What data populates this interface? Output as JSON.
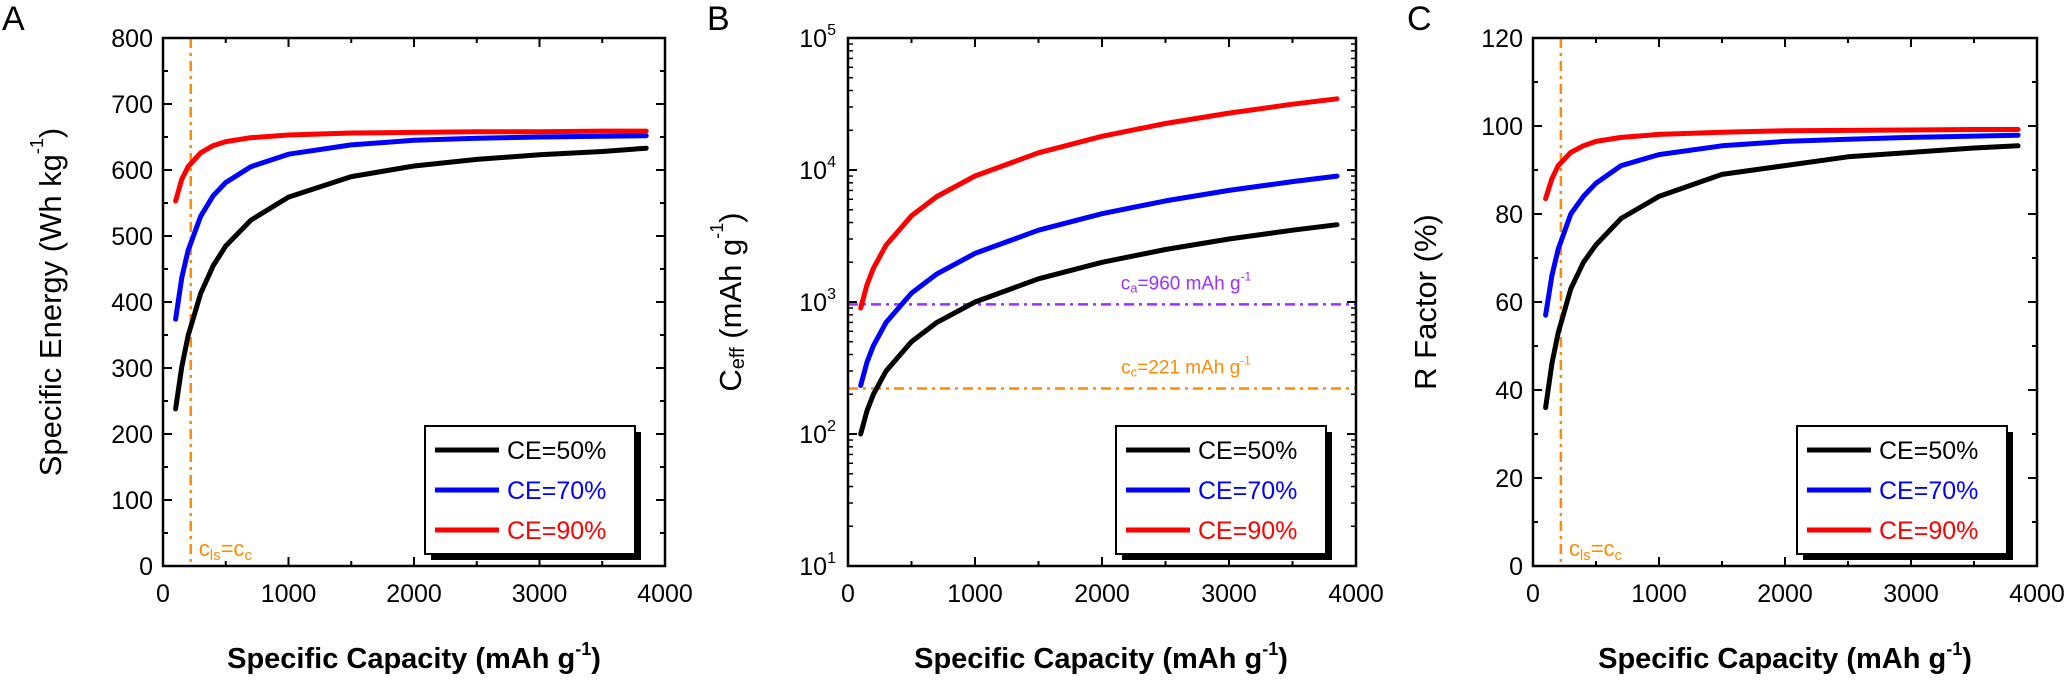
{
  "chart_data": [
    {
      "panel": "A",
      "type": "line",
      "xlabel": "Specific Capacity (mAh g",
      "xlabel_sup": "-1",
      "xlabel_end": ")",
      "ylabel": "Specific Energy (Wh kg",
      "ylabel_sup": "-1",
      "ylabel_end": ")",
      "xlim": [
        0,
        4000
      ],
      "ylim": [
        0,
        800
      ],
      "yscale": "linear",
      "xticks": [
        0,
        1000,
        2000,
        3000,
        4000
      ],
      "xtick_labels": [
        "0",
        "1000",
        "2000",
        "3000",
        "4000"
      ],
      "yticks": [
        0,
        100,
        200,
        300,
        400,
        500,
        600,
        700,
        800
      ],
      "ytick_labels": [
        "0",
        "100",
        "200",
        "300",
        "400",
        "500",
        "600",
        "700",
        "800"
      ],
      "grid": false,
      "legend_position": "bottom-right",
      "series": [
        {
          "name": "CE=50%",
          "color": "#000000",
          "x": [
            100,
            150,
            200,
            300,
            400,
            500,
            700,
            1000,
            1500,
            2000,
            2500,
            3000,
            3500,
            3850
          ],
          "y": [
            238,
            302,
            349,
            413,
            455,
            485,
            524,
            559,
            590,
            606,
            616,
            623,
            628,
            633
          ]
        },
        {
          "name": "CE=70%",
          "color": "#0000ff",
          "x": [
            100,
            150,
            200,
            300,
            400,
            500,
            700,
            1000,
            1500,
            2000,
            2500,
            3000,
            3500,
            3850
          ],
          "y": [
            374,
            437,
            478,
            530,
            561,
            581,
            605,
            624,
            638,
            645,
            648,
            650,
            651,
            652
          ]
        },
        {
          "name": "CE=90%",
          "color": "#ff0000",
          "x": [
            100,
            150,
            200,
            300,
            400,
            500,
            700,
            1000,
            1500,
            2000,
            2500,
            3000,
            3500,
            3850
          ],
          "y": [
            553,
            586,
            605,
            626,
            637,
            643,
            649,
            653,
            656,
            657,
            658,
            658,
            659,
            659
          ]
        }
      ],
      "vline": {
        "x": 221,
        "color": "#ff8c00",
        "label_main": "c",
        "label_sub1": "ls",
        "label_mid": "=c",
        "label_sub2": "c"
      }
    },
    {
      "panel": "B",
      "type": "line",
      "xlabel": "Specific Capacity (mAh g",
      "xlabel_sup": "-1",
      "xlabel_end": ")",
      "ylabel": "C",
      "ylabel_sub": "eff",
      "ylabel_end": " (mAh g",
      "ylabel_sup": "-1",
      "ylabel_close": ")",
      "xlim": [
        0,
        4000
      ],
      "ylim": [
        10,
        100000
      ],
      "yscale": "log",
      "xticks": [
        0,
        1000,
        2000,
        3000,
        4000
      ],
      "xtick_labels": [
        "0",
        "1000",
        "2000",
        "3000",
        "4000"
      ],
      "yticks": [
        10,
        100,
        1000,
        10000,
        100000
      ],
      "ytick_base": "10",
      "ytick_exponents": [
        "1",
        "2",
        "3",
        "4",
        "5"
      ],
      "grid": false,
      "legend_position": "bottom-right",
      "series": [
        {
          "name": "CE=50%",
          "color": "#000000",
          "x": [
            100,
            150,
            200,
            300,
            500,
            700,
            1000,
            1500,
            2000,
            2500,
            3000,
            3500,
            3850
          ],
          "y": [
            100,
            150,
            200,
            300,
            500,
            700,
            1000,
            1500,
            2000,
            2500,
            3000,
            3500,
            3850
          ]
        },
        {
          "name": "CE=70%",
          "color": "#0000ff",
          "x": [
            100,
            150,
            200,
            300,
            500,
            700,
            1000,
            1500,
            2000,
            2500,
            3000,
            3500,
            3850
          ],
          "y": [
            233,
            350,
            467,
            700,
            1167,
            1633,
            2333,
            3500,
            4667,
            5833,
            7000,
            8167,
            8983
          ]
        },
        {
          "name": "CE=90%",
          "color": "#ff0000",
          "x": [
            100,
            150,
            200,
            300,
            500,
            700,
            1000,
            1500,
            2000,
            2500,
            3000,
            3500,
            3850
          ],
          "y": [
            900,
            1350,
            1800,
            2700,
            4500,
            6300,
            9000,
            13500,
            18000,
            22500,
            27000,
            31500,
            34650
          ]
        }
      ],
      "hlines": [
        {
          "y": 960,
          "color": "#9b30ff",
          "label_main": "c",
          "label_sub": "a",
          "label_rest": "=960 mAh g",
          "label_sup": "-1"
        },
        {
          "y": 221,
          "color": "#ff8c00",
          "label_main": "c",
          "label_sub": "c",
          "label_rest": "=221 mAh g",
          "label_sup": "-1"
        }
      ]
    },
    {
      "panel": "C",
      "type": "line",
      "xlabel": "Specific Capacity (mAh g",
      "xlabel_sup": "-1",
      "xlabel_end": ")",
      "ylabel": "R Factor (%)",
      "xlim": [
        0,
        4000
      ],
      "ylim": [
        0,
        120
      ],
      "yscale": "linear",
      "xticks": [
        0,
        1000,
        2000,
        3000,
        4000
      ],
      "xtick_labels": [
        "0",
        "1000",
        "2000",
        "3000",
        "4000"
      ],
      "yticks": [
        0,
        20,
        40,
        60,
        80,
        100,
        120
      ],
      "ytick_labels": [
        "0",
        "20",
        "40",
        "60",
        "80",
        "100",
        "120"
      ],
      "grid": false,
      "legend_position": "bottom-right",
      "series": [
        {
          "name": "CE=50%",
          "color": "#000000",
          "x": [
            100,
            150,
            200,
            300,
            400,
            500,
            700,
            1000,
            1500,
            2000,
            2500,
            3000,
            3500,
            3850
          ],
          "y": [
            36,
            46,
            53,
            63,
            69,
            73,
            79,
            84,
            89,
            91,
            93,
            94,
            95,
            95.5
          ]
        },
        {
          "name": "CE=70%",
          "color": "#0000ff",
          "x": [
            100,
            150,
            200,
            300,
            400,
            500,
            700,
            1000,
            1500,
            2000,
            2500,
            3000,
            3500,
            3850
          ],
          "y": [
            57,
            66,
            72,
            80,
            84,
            87,
            91,
            93.5,
            95.5,
            96.5,
            97,
            97.4,
            97.7,
            97.9
          ]
        },
        {
          "name": "CE=90%",
          "color": "#ff0000",
          "x": [
            100,
            150,
            200,
            300,
            400,
            500,
            700,
            1000,
            1500,
            2000,
            2500,
            3000,
            3500,
            3850
          ],
          "y": [
            83.5,
            88,
            91,
            94,
            95.5,
            96.5,
            97.4,
            98.1,
            98.6,
            98.9,
            99,
            99.1,
            99.2,
            99.2
          ]
        }
      ],
      "vline": {
        "x": 221,
        "color": "#ff8c00",
        "label_main": "c",
        "label_sub1": "ls",
        "label_mid": "=c",
        "label_sub2": "c"
      }
    }
  ]
}
